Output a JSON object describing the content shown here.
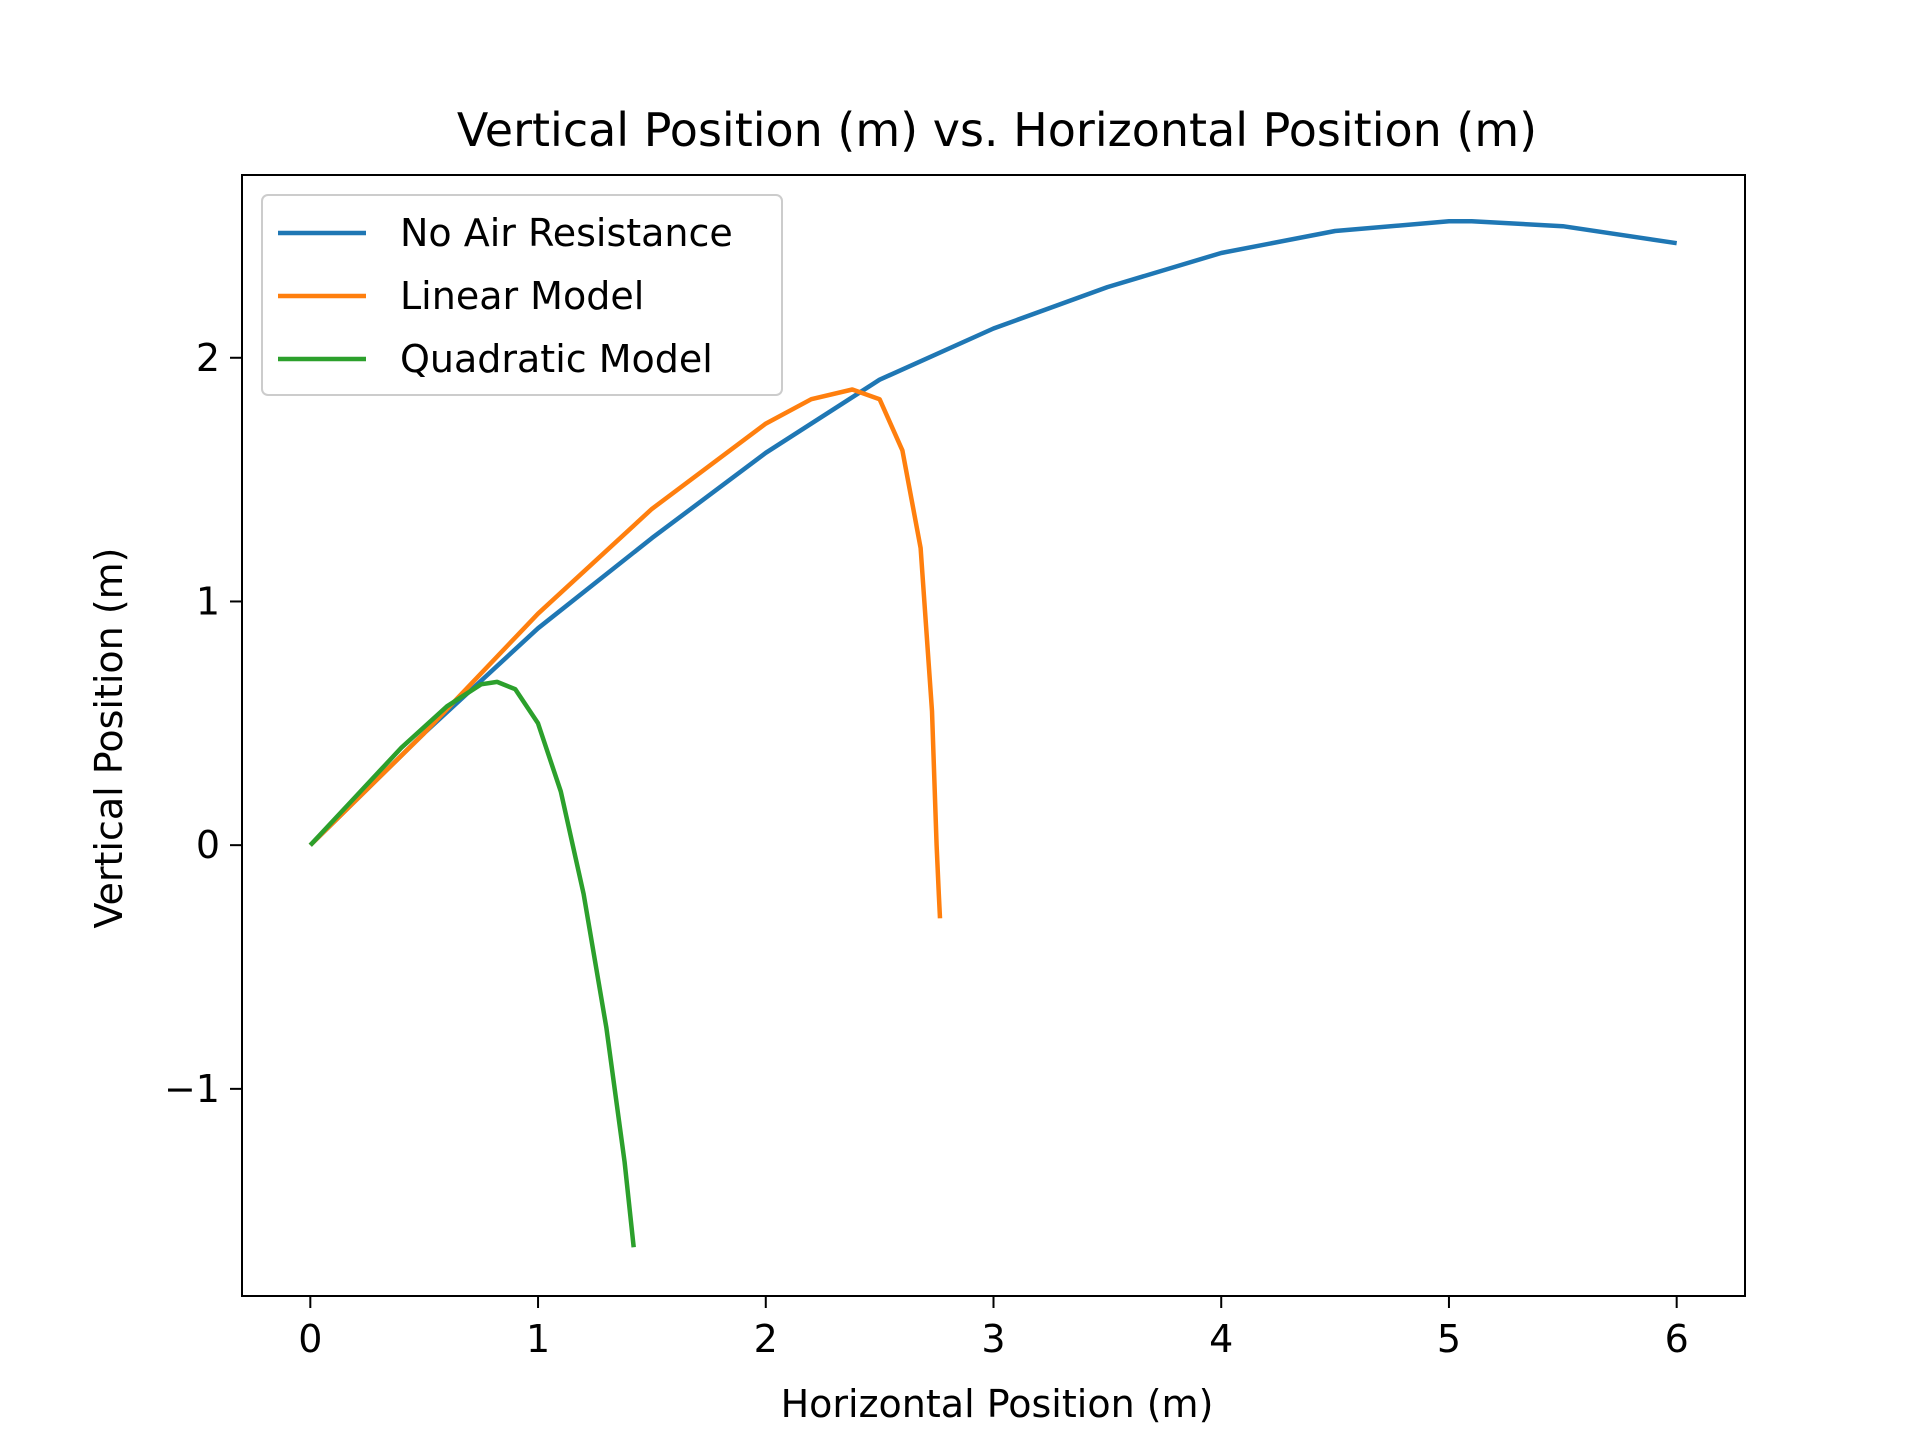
{
  "chart_data": {
    "type": "line",
    "title": "Vertical Position (m) vs. Horizontal Position (m)",
    "xlabel": "Horizontal Position (m)",
    "ylabel": "Vertical Position (m)",
    "xlim": [
      -0.3,
      6.3
    ],
    "ylim": [
      -1.85,
      2.75
    ],
    "xticks": [
      0,
      1,
      2,
      3,
      4,
      5,
      6
    ],
    "xtick_labels": [
      "0",
      "1",
      "2",
      "3",
      "4",
      "5",
      "6"
    ],
    "yticks": [
      -1,
      0,
      1,
      2
    ],
    "ytick_labels": [
      "−1",
      "0",
      "1",
      "2"
    ],
    "grid": false,
    "legend_position": "upper-left",
    "series": [
      {
        "name": "No Air Resistance",
        "color": "#1f77b4",
        "x": [
          0,
          0.5,
          1.0,
          1.5,
          2.0,
          2.5,
          3.0,
          3.5,
          4.0,
          4.5,
          5.0,
          5.1,
          5.5,
          6.0
        ],
        "y": [
          0,
          0.46,
          0.89,
          1.26,
          1.61,
          1.91,
          2.12,
          2.29,
          2.43,
          2.52,
          2.56,
          2.56,
          2.54,
          2.47
        ]
      },
      {
        "name": "Linear Model",
        "color": "#ff7f0e",
        "x": [
          0,
          0.5,
          1.0,
          1.5,
          2.0,
          2.2,
          2.38,
          2.5,
          2.6,
          2.68,
          2.73,
          2.75,
          2.76,
          2.765
        ],
        "y": [
          0,
          0.46,
          0.95,
          1.38,
          1.73,
          1.83,
          1.87,
          1.83,
          1.62,
          1.22,
          0.55,
          0.0,
          -0.2,
          -0.3
        ]
      },
      {
        "name": "Quadratic Model",
        "color": "#2ca02c",
        "x": [
          0,
          0.2,
          0.4,
          0.6,
          0.75,
          0.82,
          0.9,
          1.0,
          1.1,
          1.2,
          1.3,
          1.38,
          1.42
        ],
        "y": [
          0,
          0.2,
          0.4,
          0.57,
          0.66,
          0.67,
          0.64,
          0.5,
          0.22,
          -0.2,
          -0.75,
          -1.3,
          -1.65
        ]
      }
    ]
  }
}
